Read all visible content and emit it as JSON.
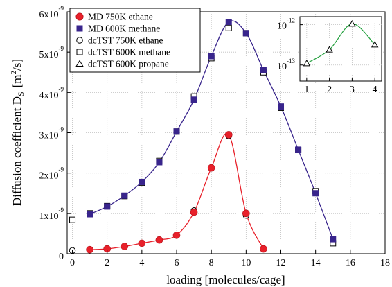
{
  "chart_data": {
    "type": "scatter",
    "title": "",
    "xlabel": "loading [molecules/cage]",
    "ylabel": {
      "text": "Diffusion coefficient D",
      "subscript": "S",
      "unit_prefix": "[m",
      "unit_power": "2",
      "unit_suffix": "/s]"
    },
    "xlim": [
      -0.3,
      18
    ],
    "ylim": [
      0,
      6e-09
    ],
    "xticks": [
      0,
      2,
      4,
      6,
      8,
      10,
      12,
      14,
      16,
      18
    ],
    "xtick_labels": [
      "0",
      "2",
      "4",
      "6",
      "8",
      "10",
      "12",
      "14",
      "16",
      "18"
    ],
    "yticks": [
      {
        "value": 0,
        "mantissa": "0",
        "exponent": ""
      },
      {
        "value": 1e-09,
        "mantissa": "1x10",
        "exponent": "-9"
      },
      {
        "value": 2e-09,
        "mantissa": "2x10",
        "exponent": "-9"
      },
      {
        "value": 3e-09,
        "mantissa": "3x10",
        "exponent": "-9"
      },
      {
        "value": 4e-09,
        "mantissa": "4x10",
        "exponent": "-9"
      },
      {
        "value": 5e-09,
        "mantissa": "5x10",
        "exponent": "-9"
      },
      {
        "value": 6e-09,
        "mantissa": "6x10",
        "exponent": "-9"
      }
    ],
    "grid": true,
    "legend_position": "top-left",
    "series": [
      {
        "name": "MD 750K ethane",
        "marker": "filled-circle",
        "color": "#e8202a",
        "x": [
          1,
          2,
          3,
          4,
          5,
          6,
          7,
          8,
          9,
          10,
          11
        ],
        "y": [
          1e-10,
          1.2e-10,
          1.8e-10,
          2.6e-10,
          3.4e-10,
          4.6e-10,
          1.03e-09,
          2.13e-09,
          2.95e-09,
          1e-09,
          1.2e-10
        ]
      },
      {
        "name": "MD 600K methane",
        "marker": "filled-square",
        "color": "#38248c",
        "x": [
          1,
          2,
          3,
          4,
          5,
          6,
          7,
          8,
          9,
          10,
          11,
          12,
          13,
          14,
          15
        ],
        "y": [
          9.8e-10,
          1.17e-09,
          1.44e-09,
          1.78e-09,
          2.27e-09,
          3.03e-09,
          3.82e-09,
          4.9e-09,
          5.75e-09,
          5.47e-09,
          4.55e-09,
          3.65e-09,
          2.58e-09,
          1.5e-09,
          3.6e-10
        ]
      },
      {
        "name": "dcTST 750K ethane",
        "marker": "open-circle",
        "color": "#000000",
        "x": [
          0,
          1,
          2,
          3,
          4,
          5,
          6,
          7,
          8,
          9,
          10,
          11
        ],
        "y": [
          8e-11,
          1e-10,
          1.2e-10,
          1.8e-10,
          2.6e-10,
          3.4e-10,
          4.5e-10,
          1.07e-09,
          2.12e-09,
          2.92e-09,
          9.5e-10,
          1.2e-10
        ]
      },
      {
        "name": "dcTST 600K methane",
        "marker": "open-square",
        "color": "#000000",
        "x": [
          0,
          1,
          2,
          3,
          4,
          5,
          6,
          7,
          8,
          9,
          10,
          11,
          12,
          13,
          14,
          15
        ],
        "y": [
          8.4e-10,
          1e-09,
          1.18e-09,
          1.43e-09,
          1.76e-09,
          2.3e-09,
          3.03e-09,
          3.9e-09,
          4.85e-09,
          5.6e-09,
          5.47e-09,
          4.5e-09,
          3.62e-09,
          2.57e-09,
          1.55e-09,
          2.6e-10
        ]
      },
      {
        "name": "dcTST 600K propane",
        "marker": "open-triangle",
        "color": "#000000",
        "x": [],
        "y": []
      }
    ],
    "fit_curves": [
      {
        "series": "MD 750K ethane",
        "color": "#e8202a",
        "x": [
          1,
          2,
          3,
          4,
          5,
          6,
          7,
          8,
          9,
          10,
          11
        ],
        "y": [
          1e-10,
          1.2e-10,
          1.8e-10,
          2.6e-10,
          3.4e-10,
          4.6e-10,
          1.03e-09,
          2.13e-09,
          2.95e-09,
          1e-09,
          1.2e-10
        ]
      },
      {
        "series": "MD 600K methane",
        "color": "#38248c",
        "x": [
          1,
          2,
          3,
          4,
          5,
          6,
          7,
          8,
          9,
          10,
          11,
          12,
          13,
          14,
          15
        ],
        "y": [
          9.8e-10,
          1.17e-09,
          1.44e-09,
          1.78e-09,
          2.27e-09,
          3.03e-09,
          3.82e-09,
          4.9e-09,
          5.75e-09,
          5.47e-09,
          4.55e-09,
          3.65e-09,
          2.58e-09,
          1.5e-09,
          3.6e-10
        ]
      }
    ],
    "inset": {
      "xlim": [
        0.7,
        4.3
      ],
      "ylim_log10": [
        -13.4,
        -11.8
      ],
      "xticks": [
        1,
        2,
        3,
        4
      ],
      "xtick_labels": [
        "1",
        "2",
        "3",
        "4"
      ],
      "yticks": [
        {
          "log10": -12,
          "base": "10",
          "exponent": "-12"
        },
        {
          "log10": -13,
          "base": "10",
          "exponent": "-13"
        }
      ],
      "curve_color": "#1f9e3a",
      "series": {
        "name": "dcTST 600K propane",
        "marker": "open-triangle",
        "x": [
          1,
          2,
          3,
          4
        ],
        "y": [
          1.1e-13,
          2.4e-13,
          1.05e-12,
          3.2e-13
        ]
      },
      "curve": {
        "x": [
          1,
          2,
          3,
          4
        ],
        "y": [
          1.1e-13,
          2.4e-13,
          1.05e-12,
          3.2e-13
        ]
      }
    }
  }
}
